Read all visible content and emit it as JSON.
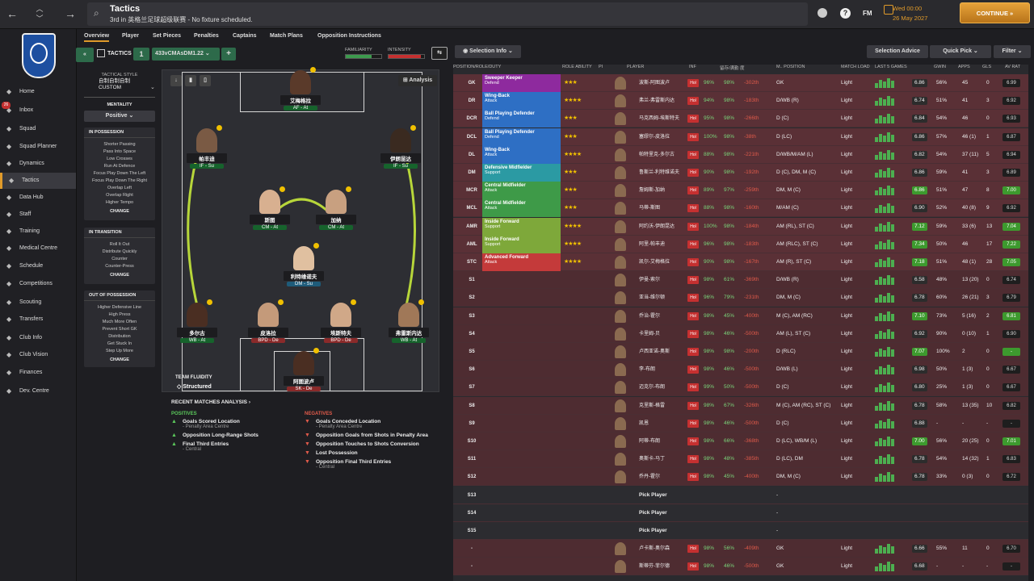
{
  "header": {
    "title": "Tactics",
    "subtitle": "3rd in 英格兰足球超级联赛 - No fixture scheduled.",
    "date_line1": "Wed 00:00",
    "date_line2": "26 May 2027",
    "continue_label": "CONTINUE",
    "fm_label": "FM"
  },
  "sidebar": {
    "inbox_badge": "26",
    "items": [
      {
        "label": "Home",
        "icon": "home-icon"
      },
      {
        "label": "Inbox",
        "icon": "inbox-icon"
      },
      {
        "label": "Squad",
        "icon": "squad-icon"
      },
      {
        "label": "Squad Planner",
        "icon": "planner-icon"
      },
      {
        "label": "Dynamics",
        "icon": "dynamics-icon"
      },
      {
        "label": "Tactics",
        "icon": "tactics-icon"
      },
      {
        "label": "Data Hub",
        "icon": "data-icon"
      },
      {
        "label": "Staff",
        "icon": "staff-icon"
      },
      {
        "label": "Training",
        "icon": "training-icon"
      },
      {
        "label": "Medical Centre",
        "icon": "medical-icon"
      },
      {
        "label": "Schedule",
        "icon": "schedule-icon"
      },
      {
        "label": "Competitions",
        "icon": "trophy-icon"
      },
      {
        "label": "Scouting",
        "icon": "scouting-icon"
      },
      {
        "label": "Transfers",
        "icon": "transfers-icon"
      },
      {
        "label": "Club Info",
        "icon": "info-icon"
      },
      {
        "label": "Club Vision",
        "icon": "vision-icon"
      },
      {
        "label": "Finances",
        "icon": "finances-icon"
      },
      {
        "label": "Dev. Centre",
        "icon": "dev-icon"
      }
    ]
  },
  "tabs": [
    "Overview",
    "Player",
    "Set Pieces",
    "Penalties",
    "Captains",
    "Match Plans",
    "Opposition Instructions"
  ],
  "toolbar": {
    "tactics_label": "TACTICS",
    "slot": "1",
    "formation": "433vCMAsDM1.22",
    "familiarity_label": "FAMILIARITY",
    "intensity_label": "INTENSITY",
    "selection_info": "Selection Info",
    "selection_advice": "Selection Advice",
    "quick_pick": "Quick Pick",
    "filter": "Filter"
  },
  "tactic_panel": {
    "style_label": "TACTICAL STYLE",
    "style_value": "自制自制自制CUSTOM",
    "mentality_label": "MENTALITY",
    "mentality_value": "Positive",
    "in_possession": "IN POSSESSION",
    "in_possession_items": [
      "Shorter Passing",
      "Pass Into Space",
      "Low Crosses",
      "Run At Defence",
      "Focus Play Down The Left",
      "Focus Play Down The Right",
      "Overlap Left",
      "Overlap Right",
      "Higher Tempo"
    ],
    "in_transition": "IN TRANSITION",
    "in_transition_items": [
      "Roll It Out",
      "Distribute Quickly",
      "Counter",
      "Counter-Press"
    ],
    "out_of_possession": "OUT OF POSSESSION",
    "out_of_possession_items": [
      "Higher Defensive Line",
      "High Press",
      "Much More Often",
      "Prevent Short GK",
      "Distribution",
      "Get Stuck In",
      "Step Up More"
    ],
    "change_label": "CHANGE"
  },
  "pitch": {
    "analysis_label": "Analysis",
    "fluidity_label": "TEAM FLUIDITY",
    "fluidity_value": "Structured",
    "players": [
      {
        "name": "艾梅格拉",
        "role": "AF - At"
      },
      {
        "name": "帕丰迪",
        "role": "IF - Su"
      },
      {
        "name": "伊朗昆达",
        "role": "IF - Su"
      },
      {
        "name": "斯图",
        "role": "CM - At"
      },
      {
        "name": "加纳",
        "role": "CM - At"
      },
      {
        "name": "利特维诺夫",
        "role": "DM - Su"
      },
      {
        "name": "多尔古",
        "role": "WB - At"
      },
      {
        "name": "弗雷斯内达",
        "role": "WB - At"
      },
      {
        "name": "皮洛拉",
        "role": "BPD - De"
      },
      {
        "name": "埃斯特夫",
        "role": "BPD - De"
      },
      {
        "name": "阿图波卢",
        "role": "SK - De"
      }
    ]
  },
  "analysis": {
    "title": "RECENT MATCHES ANALYSIS",
    "positives_label": "POSITIVES",
    "negatives_label": "NEGATIVES",
    "positives": [
      {
        "text": "Goals Scored Location",
        "sub": "- Penalty Area Centre"
      },
      {
        "text": "Opposition Long-Range Shots",
        "sub": ""
      },
      {
        "text": "Final Third Entries",
        "sub": "- Central"
      }
    ],
    "negatives": [
      {
        "text": "Goals Conceded Location",
        "sub": "- Penalty Area Centre"
      },
      {
        "text": "Opposition Goals from Shots in Penalty Area",
        "sub": ""
      },
      {
        "text": "Opposition Touches to Shots Conversion",
        "sub": ""
      },
      {
        "text": "Lost Possession",
        "sub": ""
      },
      {
        "text": "Opposition Final Third Entries",
        "sub": "- Central"
      }
    ]
  },
  "table": {
    "headers": [
      "POSITION/ROLE/DUTY",
      "ROLE ABILITY",
      "PI",
      "PLAYER",
      "INF",
      "留存/满勤 度",
      "M.. POSITION",
      "MATCH LOAD",
      "LAST 5 GAMES",
      "GWIN",
      "APPS",
      "GLS",
      "AV RAT"
    ],
    "rows": [
      {
        "pos": "GK",
        "role": "Sweeper Keeper",
        "duty": "Defend",
        "color": "#8e2a9e",
        "stars": "★★★",
        "player": "波斯-阿图波卢",
        "cond": "96%",
        "sharp": "98%",
        "days": "-302th",
        "position": "GK",
        "load": "Light",
        "rating": "6.86",
        "gwin": "56%",
        "apps": "45",
        "gls": "0",
        "av": "6.99",
        "green": false
      },
      {
        "pos": "DR",
        "role": "Wing-Back",
        "duty": "Attack",
        "color": "#2e6fc4",
        "stars": "★★★★",
        "player": "弗兰-弗雷斯内达",
        "cond": "94%",
        "sharp": "98%",
        "days": "-183th",
        "position": "D/WB (R)",
        "load": "Light",
        "rating": "6.74",
        "gwin": "51%",
        "apps": "41",
        "gls": "3",
        "av": "6.92",
        "green": false
      },
      {
        "pos": "DCR",
        "role": "Ball Playing Defender",
        "duty": "Defend",
        "color": "#2e6fc4",
        "stars": "★★★",
        "player": "马克西姆-埃斯特夫",
        "cond": "95%",
        "sharp": "98%",
        "days": "-266th",
        "position": "D (C)",
        "load": "Light",
        "rating": "6.84",
        "gwin": "54%",
        "apps": "46",
        "gls": "0",
        "av": "6.93",
        "green": false
      },
      {
        "pos": "DCL",
        "role": "Ball Playing Defender",
        "duty": "Defend",
        "color": "#2e6fc4",
        "stars": "★★★",
        "player": "塞缪尔-皮洛拉",
        "cond": "100%",
        "sharp": "98%",
        "days": "-38th",
        "position": "D (LC)",
        "load": "Light",
        "rating": "6.86",
        "gwin": "57%",
        "apps": "46 (1)",
        "gls": "1",
        "av": "6.87",
        "green": false
      },
      {
        "pos": "DL",
        "role": "Wing-Back",
        "duty": "Attack",
        "color": "#2e6fc4",
        "stars": "★★★★",
        "player": "帕特里克-多尔古",
        "cond": "88%",
        "sharp": "98%",
        "days": "-221th",
        "position": "D/WB/M/AM (L)",
        "load": "Light",
        "rating": "6.82",
        "gwin": "54%",
        "apps": "37 (11)",
        "gls": "5",
        "av": "6.94",
        "green": false
      },
      {
        "pos": "DM",
        "role": "Defensive Midfielder",
        "duty": "Support",
        "color": "#2b9aa3",
        "stars": "★★★",
        "player": "鲁斯兰-利特维诺夫",
        "cond": "90%",
        "sharp": "98%",
        "days": "-192th",
        "position": "D (C), DM, M (C)",
        "load": "Light",
        "rating": "6.86",
        "gwin": "59%",
        "apps": "41",
        "gls": "3",
        "av": "6.89",
        "green": false
      },
      {
        "pos": "MCR",
        "role": "Central Midfielder",
        "duty": "Attack",
        "color": "#3e9a48",
        "stars": "★★★",
        "player": "詹姆斯-加纳",
        "cond": "89%",
        "sharp": "97%",
        "days": "-259th",
        "position": "DM, M (C)",
        "load": "Light",
        "rating": "6.86",
        "gwin": "51%",
        "apps": "47",
        "gls": "8",
        "av": "7.00",
        "green": true
      },
      {
        "pos": "MCL",
        "role": "Central Midfielder",
        "duty": "Attack",
        "color": "#3e9a48",
        "stars": "★★★",
        "player": "马蒂-斯图",
        "cond": "88%",
        "sharp": "98%",
        "days": "-160th",
        "position": "M/AM (C)",
        "load": "Light",
        "rating": "6.90",
        "gwin": "52%",
        "apps": "40 (8)",
        "gls": "9",
        "av": "6.92",
        "green": false
      },
      {
        "pos": "AMR",
        "role": "Inside Forward",
        "duty": "Support",
        "color": "#7ea83a",
        "stars": "★★★★",
        "player": "阿约沃-伊朗昆达",
        "cond": "100%",
        "sharp": "98%",
        "days": "-184th",
        "position": "AM (RL), ST (C)",
        "load": "Light",
        "rating": "7.12",
        "gwin": "59%",
        "apps": "33 (6)",
        "gls": "13",
        "av": "7.04",
        "green": true
      },
      {
        "pos": "AML",
        "role": "Inside Forward",
        "duty": "Support",
        "color": "#7ea83a",
        "stars": "★★★★",
        "player": "阿里-帕丰迪",
        "cond": "96%",
        "sharp": "98%",
        "days": "-183th",
        "position": "AM (RLC), ST (C)",
        "load": "Light",
        "rating": "7.34",
        "gwin": "50%",
        "apps": "46",
        "gls": "17",
        "av": "7.22",
        "green": true
      },
      {
        "pos": "STC",
        "role": "Advanced Forward",
        "duty": "Attack",
        "color": "#c43a3a",
        "stars": "★★★★",
        "player": "凯尔-艾梅格拉",
        "cond": "90%",
        "sharp": "98%",
        "days": "-167th",
        "position": "AM (R), ST (C)",
        "load": "Light",
        "rating": "7.18",
        "gwin": "51%",
        "apps": "48 (1)",
        "gls": "28",
        "av": "7.05",
        "green": true
      },
      {
        "pos": "S1",
        "player": "伊曼-索尔",
        "cond": "98%",
        "sharp": "61%",
        "days": "-369th",
        "position": "D/WB (R)",
        "load": "Light",
        "rating": "6.58",
        "gwin": "48%",
        "apps": "13 (20)",
        "gls": "0",
        "av": "6.74"
      },
      {
        "pos": "S2",
        "player": "亚当-维尔顿",
        "cond": "96%",
        "sharp": "79%",
        "days": "-231th",
        "position": "DM, M (C)",
        "load": "Light",
        "rating": "6.78",
        "gwin": "60%",
        "apps": "26 (21)",
        "gls": "3",
        "av": "6.79"
      },
      {
        "pos": "S3",
        "player": "乔治-霍尔",
        "cond": "98%",
        "sharp": "45%",
        "days": "-400th",
        "position": "M (C), AM (RC)",
        "load": "Light",
        "rating": "7.10",
        "gwin": "73%",
        "apps": "5 (16)",
        "gls": "2",
        "av": "6.81",
        "ratingGreen": true
      },
      {
        "pos": "S4",
        "player": "卡里姆-贝",
        "cond": "98%",
        "sharp": "46%",
        "days": "-500th",
        "position": "AM (L), ST (C)",
        "load": "Light",
        "rating": "6.92",
        "gwin": "90%",
        "apps": "0 (10)",
        "gls": "1",
        "av": "6.90"
      },
      {
        "pos": "S5",
        "player": "卢西亚诺-奥斯",
        "cond": "98%",
        "sharp": "98%",
        "days": "-200th",
        "position": "D (RLC)",
        "load": "Light",
        "rating": "7.07",
        "gwin": "100%",
        "apps": "2",
        "gls": "0",
        "av": "-",
        "ratingGreen": true
      },
      {
        "pos": "S6",
        "player": "李-布朗",
        "cond": "98%",
        "sharp": "46%",
        "days": "-500th",
        "position": "D/WB (L)",
        "load": "Light",
        "rating": "6.98",
        "gwin": "50%",
        "apps": "1 (3)",
        "gls": "0",
        "av": "6.67"
      },
      {
        "pos": "S7",
        "player": "迈克尔-布朗",
        "cond": "99%",
        "sharp": "50%",
        "days": "-500th",
        "position": "D (C)",
        "load": "Light",
        "rating": "6.80",
        "gwin": "25%",
        "apps": "1 (3)",
        "gls": "0",
        "av": "6.67"
      },
      {
        "pos": "S8",
        "player": "克里斯-格雷",
        "cond": "98%",
        "sharp": "67%",
        "days": "-326th",
        "position": "M (C), AM (RC), ST (C)",
        "load": "Light",
        "rating": "6.78",
        "gwin": "58%",
        "apps": "13 (35)",
        "gls": "10",
        "av": "6.82"
      },
      {
        "pos": "S9",
        "player": "凯恩",
        "cond": "98%",
        "sharp": "46%",
        "days": "-500th",
        "position": "D (C)",
        "load": "Light",
        "rating": "6.88",
        "gwin": "-",
        "apps": "-",
        "gls": "-",
        "av": "-"
      },
      {
        "pos": "S10",
        "player": "阿蒂-布朗",
        "cond": "98%",
        "sharp": "66%",
        "days": "-368th",
        "position": "D (LC), WB/M (L)",
        "load": "Light",
        "rating": "7.00",
        "gwin": "56%",
        "apps": "20 (25)",
        "gls": "0",
        "av": "7.01",
        "ratingGreen": true
      },
      {
        "pos": "S11",
        "player": "奥斯卡-马丁",
        "cond": "98%",
        "sharp": "48%",
        "days": "-385th",
        "position": "D (LC), DM",
        "load": "Light",
        "rating": "6.78",
        "gwin": "54%",
        "apps": "14 (32)",
        "gls": "1",
        "av": "6.83"
      },
      {
        "pos": "S12",
        "player": "乔丹-霍尔",
        "cond": "98%",
        "sharp": "45%",
        "days": "-400th",
        "position": "DM, M (C)",
        "load": "Light",
        "rating": "6.78",
        "gwin": "33%",
        "apps": "0 (3)",
        "gls": "0",
        "av": "6.72"
      },
      {
        "pos": "S13",
        "pick": "Pick Player",
        "position": "-"
      },
      {
        "pos": "S14",
        "pick": "Pick Player",
        "position": "-"
      },
      {
        "pos": "S15",
        "pick": "Pick Player",
        "position": "-"
      },
      {
        "pos": "-",
        "player": "卢卡斯-奥尔森",
        "cond": "98%",
        "sharp": "56%",
        "days": "-409th",
        "position": "GK",
        "load": "Light",
        "rating": "6.66",
        "gwin": "55%",
        "apps": "11",
        "gls": "0",
        "av": "6.70"
      },
      {
        "pos": "-",
        "player": "斯蒂芬-菲尔德",
        "cond": "98%",
        "sharp": "46%",
        "days": "-500th",
        "position": "GK",
        "load": "Light",
        "rating": "6.68",
        "gwin": "-",
        "apps": "-",
        "gls": "-",
        "av": "-"
      }
    ]
  },
  "colors": {
    "accent": "#e09a2a",
    "continue": "#d9902a",
    "green_rating": "#3d9a2e",
    "hol": "#c53030"
  }
}
